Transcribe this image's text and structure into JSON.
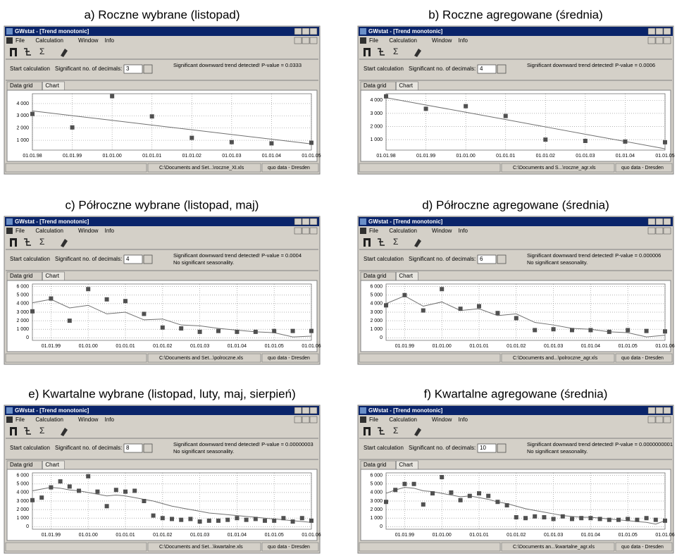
{
  "panels": [
    {
      "caption": "a) Roczne wybrane (listopad)",
      "window": {
        "title": "GWstat - [Trend monotonic]",
        "menu": [
          "File",
          "Calculation",
          "Window",
          "Info"
        ],
        "toolbar_symbol": "Σ",
        "calc_button": "Start calculation",
        "decimals_label": "Significant no. of decimals:",
        "decimals": "3",
        "messages": [
          "Significant downward trend detected! P-value = 0.0333"
        ],
        "tabs": [
          "Data grid",
          "Chart"
        ],
        "status": [
          "C:\\Documents and Set...\\roczne_XI.xls",
          "quo data - Dresden"
        ]
      }
    },
    {
      "caption": "b) Roczne agregowane (średnia)",
      "window": {
        "title": "GWstat - [Trend monotonic]",
        "menu": [
          "File",
          "Calculation",
          "Window",
          "Info"
        ],
        "toolbar_symbol": "Σ",
        "calc_button": "Start calculation",
        "decimals_label": "Significant no. of decimals:",
        "decimals": "4",
        "messages": [
          "Significant downward trend detected! P-value = 0.0006"
        ],
        "tabs": [
          "Data grid",
          "Chart"
        ],
        "status": [
          "C:\\Documents and S...\\roczne_agr.xls",
          "quo data - Dresden"
        ]
      }
    },
    {
      "caption": "c) Półroczne wybrane (listopad, maj)",
      "window": {
        "title": "GWstat - [Trend monotonic]",
        "menu": [
          "File",
          "Calculation",
          "Window",
          "Info"
        ],
        "toolbar_symbol": "Σ",
        "calc_button": "Start calculation",
        "decimals_label": "Significant no. of decimals:",
        "decimals": "4",
        "messages": [
          "Significant downward trend detected! P-value = 0.0004",
          "No significant seasonality."
        ],
        "tabs": [
          "Data grid",
          "Chart"
        ],
        "status": [
          "C:\\Documents and Set...\\polroczne.xls",
          "quo data - Dresden"
        ]
      }
    },
    {
      "caption": "d) Półroczne agregowane (średnia)",
      "window": {
        "title": "GWstat - [Trend monotonic]",
        "menu": [
          "File",
          "Calculation",
          "Window",
          "Info"
        ],
        "toolbar_symbol": "Σ",
        "calc_button": "Start calculation",
        "decimals_label": "Significant no. of decimals:",
        "decimals": "6",
        "messages": [
          "Significant downward trend detected! P-value = 0.000006",
          "No significant seasonality."
        ],
        "tabs": [
          "Data grid",
          "Chart"
        ],
        "status": [
          "C:\\Documents and...\\polroczne_agr.xls",
          "quo data - Dresden"
        ]
      }
    },
    {
      "caption": "e) Kwartalne wybrane (listopad, luty, maj, sierpień)",
      "window": {
        "title": "GWstat - [Trend monotonic]",
        "menu": [
          "File",
          "Calculation",
          "Window",
          "Info"
        ],
        "toolbar_symbol": "Σ",
        "calc_button": "Start calculation",
        "decimals_label": "Significant no. of decimals:",
        "decimals": "8",
        "messages": [
          "Significant downward trend detected! P-value = 0.00000003",
          "No significant seasonality."
        ],
        "tabs": [
          "Data grid",
          "Chart"
        ],
        "status": [
          "C:\\Documents and Set...\\kwartalne.xls",
          "quo data - Dresden"
        ]
      }
    },
    {
      "caption": "f) Kwartalne agregowane (średnia)",
      "window": {
        "title": "GWstat - [Trend monotonic]",
        "menu": [
          "File",
          "Calculation",
          "Window",
          "Info"
        ],
        "toolbar_symbol": "Σ",
        "calc_button": "Start calculation",
        "decimals_label": "Significant no. of decimals:",
        "decimals": "10",
        "messages": [
          "Significant downward trend detected! P-value = 0.0000000001",
          "No significant seasonality."
        ],
        "tabs": [
          "Data grid",
          "Chart"
        ],
        "status": [
          "C:\\Documents an...\\kwartalne_agr.xls",
          "quo data - Dresden"
        ]
      }
    }
  ],
  "chart_data": [
    {
      "type": "scatter",
      "grid": true,
      "marker_color": "#505050",
      "line_color": "#707070",
      "categories": [
        "01.01.98",
        "01.01.99",
        "01.01.00",
        "01.01.01",
        "01.01.02",
        "01.01.03",
        "01.01.04",
        "01.01.05"
      ],
      "values": [
        3150,
        2050,
        4600,
        2950,
        1200,
        850,
        750,
        800
      ],
      "trend_values": [
        3400,
        3010,
        2630,
        2240,
        1860,
        1470,
        1090,
        700
      ],
      "ylim": [
        200,
        4800
      ],
      "yticks": [
        {
          "value": 1000,
          "label": "1 000"
        },
        {
          "value": 2000,
          "label": "2 000"
        },
        {
          "value": 3000,
          "label": "3 000"
        },
        {
          "value": 4000,
          "label": "4 000"
        }
      ]
    },
    {
      "type": "scatter",
      "grid": true,
      "marker_color": "#505050",
      "line_color": "#707070",
      "categories": [
        "01.01.98",
        "01.01.99",
        "01.01.00",
        "01.01.01",
        "01.01.02",
        "01.01.03",
        "01.01.04",
        "01.01.05"
      ],
      "values": [
        4300,
        3350,
        3550,
        2800,
        1000,
        900,
        850,
        800
      ],
      "trend_values": [
        4200,
        3640,
        3090,
        2530,
        1970,
        1410,
        860,
        300
      ],
      "ylim": [
        200,
        4500
      ],
      "yticks": [
        {
          "value": 1000,
          "label": "1 000"
        },
        {
          "value": 2000,
          "label": "2 000"
        },
        {
          "value": 3000,
          "label": "3 000"
        },
        {
          "value": 4000,
          "label": "4 000"
        }
      ]
    },
    {
      "type": "scatter",
      "grid": true,
      "marker_color": "#505050",
      "line_color": "#707070",
      "categories": [
        null,
        "01.01.99",
        null,
        "01.01.00",
        null,
        "01.01.01",
        null,
        "01.01.02",
        null,
        "01.01.03",
        null,
        "01.01.04",
        null,
        "01.01.05",
        null,
        "01.01.06"
      ],
      "values": [
        3100,
        4600,
        2000,
        5700,
        4500,
        4300,
        2800,
        1200,
        1100,
        700,
        800,
        700,
        700,
        800,
        800,
        800
      ],
      "trend_values": [
        4100,
        4500,
        3500,
        3800,
        2800,
        3000,
        2100,
        2200,
        1500,
        1400,
        1100,
        900,
        700,
        600,
        100,
        200
      ],
      "ylim": [
        -300,
        6300
      ],
      "yticks": [
        0,
        {
          "value": 1000,
          "label": "1 000"
        },
        {
          "value": 2000,
          "label": "2 000"
        },
        {
          "value": 3000,
          "label": "3 000"
        },
        {
          "value": 4000,
          "label": "4 000"
        },
        {
          "value": 5000,
          "label": "5 000"
        },
        {
          "value": 6000,
          "label": "6 000"
        }
      ]
    },
    {
      "type": "scatter",
      "grid": true,
      "marker_color": "#505050",
      "line_color": "#707070",
      "categories": [
        null,
        "01.01.99",
        null,
        "01.01.00",
        null,
        "01.01.01",
        null,
        "01.01.02",
        null,
        "01.01.03",
        null,
        "01.01.04",
        null,
        "01.01.05",
        null,
        "01.01.06"
      ],
      "values": [
        3800,
        5000,
        3200,
        5700,
        3400,
        3700,
        2900,
        2300,
        900,
        1000,
        900,
        900,
        700,
        900,
        800,
        750
      ],
      "trend_values": [
        4000,
        4900,
        3700,
        4200,
        3200,
        3400,
        2600,
        2800,
        1800,
        1500,
        1100,
        1000,
        700,
        600,
        100,
        300
      ],
      "ylim": [
        -300,
        6300
      ],
      "yticks": [
        0,
        {
          "value": 1000,
          "label": "1 000"
        },
        {
          "value": 2000,
          "label": "2 000"
        },
        {
          "value": 3000,
          "label": "3 000"
        },
        {
          "value": 4000,
          "label": "4 000"
        },
        {
          "value": 5000,
          "label": "5 000"
        },
        {
          "value": 6000,
          "label": "6 000"
        }
      ]
    },
    {
      "type": "scatter",
      "grid": true,
      "marker_color": "#505050",
      "line_color": "#707070",
      "categories": [
        null,
        null,
        "01.01.99",
        null,
        null,
        null,
        "01.01.00",
        null,
        null,
        null,
        "01.01.01",
        null,
        null,
        null,
        "01.01.02",
        null,
        null,
        null,
        "01.01.03",
        null,
        null,
        null,
        "01.01.04",
        null,
        null,
        null,
        "01.01.05",
        null,
        null,
        null,
        "01.01.06"
      ],
      "values": [
        3100,
        3400,
        4600,
        5300,
        4700,
        4200,
        5900,
        4100,
        2400,
        4300,
        4100,
        4200,
        3000,
        1300,
        1000,
        900,
        800,
        900,
        600,
        700,
        700,
        800,
        1000,
        800,
        900,
        700,
        700,
        1000,
        600,
        1000,
        700
      ],
      "trend_values": [
        4200,
        4400,
        4600,
        4500,
        4300,
        4200,
        4000,
        3800,
        3600,
        3700,
        3600,
        3400,
        3200,
        3000,
        2700,
        2400,
        2200,
        2000,
        1800,
        1600,
        1500,
        1400,
        1300,
        1200,
        1100,
        1000,
        900,
        800,
        700,
        600,
        500
      ],
      "ylim": [
        -300,
        6300
      ],
      "yticks": [
        0,
        {
          "value": 1000,
          "label": "1 000"
        },
        {
          "value": 2000,
          "label": "2 000"
        },
        {
          "value": 3000,
          "label": "3 000"
        },
        {
          "value": 4000,
          "label": "4 000"
        },
        {
          "value": 5000,
          "label": "5 000"
        },
        {
          "value": 6000,
          "label": "6 000"
        }
      ]
    },
    {
      "type": "scatter",
      "grid": true,
      "marker_color": "#505050",
      "line_color": "#707070",
      "categories": [
        null,
        null,
        "01.01.99",
        null,
        null,
        null,
        "01.01.00",
        null,
        null,
        null,
        "01.01.01",
        null,
        null,
        null,
        "01.01.02",
        null,
        null,
        null,
        "01.01.03",
        null,
        null,
        null,
        "01.01.04",
        null,
        null,
        null,
        "01.01.05",
        null,
        null,
        null,
        "01.01.06"
      ],
      "values": [
        2900,
        4300,
        5000,
        5000,
        2600,
        3900,
        5800,
        4000,
        3100,
        3600,
        3900,
        3600,
        2900,
        2500,
        1100,
        1000,
        1200,
        1100,
        900,
        1200,
        900,
        1000,
        1000,
        900,
        800,
        800,
        900,
        800,
        1000,
        800,
        700
      ],
      "trend_values": [
        3900,
        4300,
        4600,
        4500,
        4200,
        4100,
        3900,
        3700,
        3500,
        3600,
        3400,
        3200,
        2900,
        2700,
        2400,
        2100,
        1900,
        1700,
        1500,
        1300,
        1200,
        1100,
        1100,
        1000,
        900,
        800,
        700,
        600,
        500,
        300,
        700
      ],
      "ylim": [
        -300,
        6300
      ],
      "yticks": [
        0,
        {
          "value": 1000,
          "label": "1 000"
        },
        {
          "value": 2000,
          "label": "2 000"
        },
        {
          "value": 3000,
          "label": "3 000"
        },
        {
          "value": 4000,
          "label": "4 000"
        },
        {
          "value": 5000,
          "label": "5 000"
        },
        {
          "value": 6000,
          "label": "6 000"
        }
      ]
    }
  ]
}
